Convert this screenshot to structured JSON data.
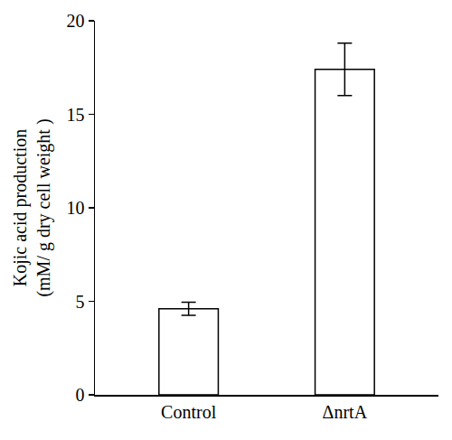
{
  "chart_data": {
    "type": "bar",
    "y_label": "Kojic acid production\n(mM/ g dry cell weight )",
    "categories": [
      "Control",
      "ΔnrtA"
    ],
    "values": [
      4.6,
      17.4
    ],
    "error": [
      0.35,
      1.4
    ],
    "color": "#ffffff",
    "ylim": [
      0,
      20
    ],
    "yticks": [
      0,
      5,
      10,
      15,
      20
    ],
    "grid": false
  }
}
